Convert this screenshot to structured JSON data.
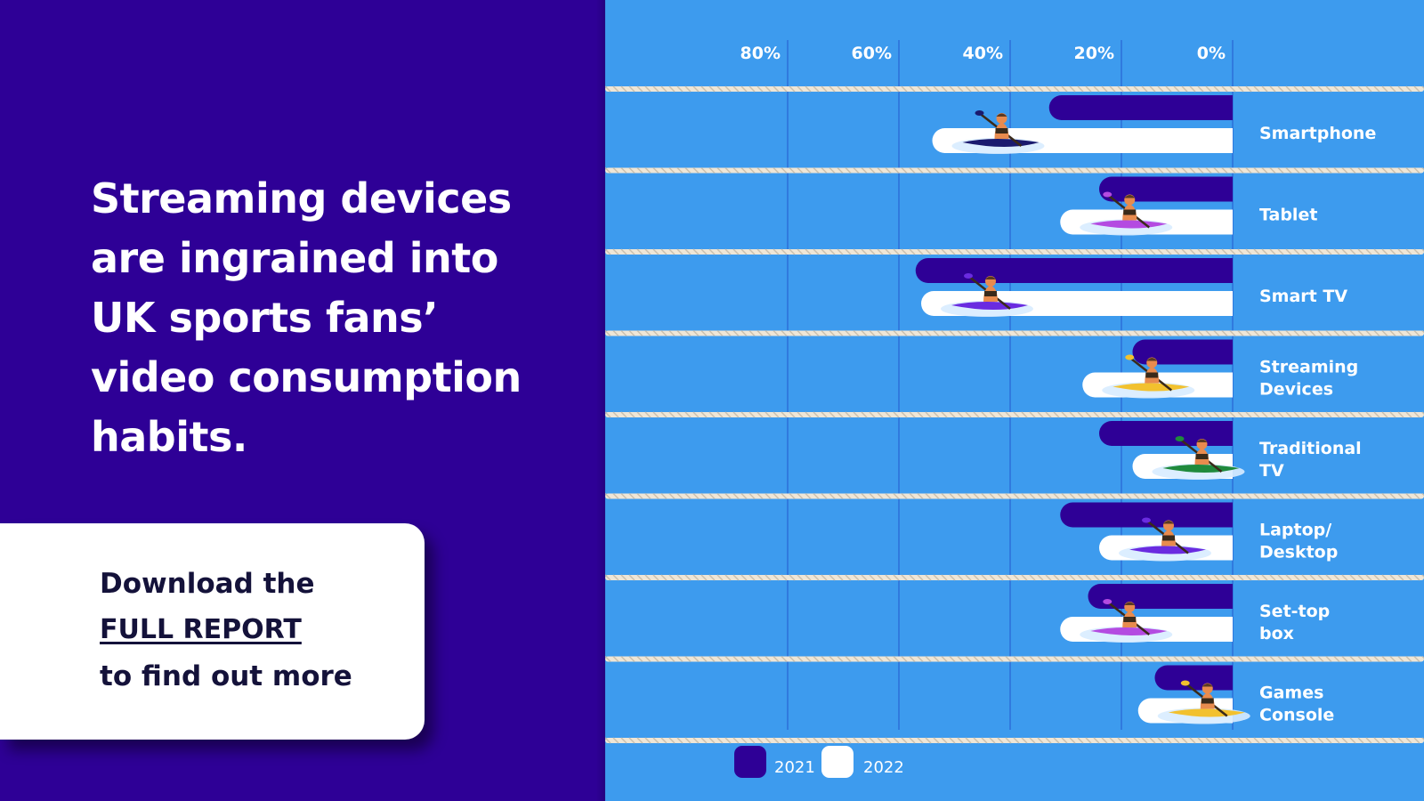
{
  "headline": "Streaming devices are ingrained into UK sports fans’ video consumption habits.",
  "cta": {
    "line1": "Download the",
    "link": "FULL REPORT",
    "line3": "to find out more"
  },
  "colors": {
    "left_bg": "#2e0096",
    "chart_bg": "#3d9bee",
    "bar_2021": "#2e0096",
    "bar_2022": "#ffffff",
    "grid": "#2c6fd8",
    "rope": "#efe6d6"
  },
  "chart_data": {
    "type": "bar",
    "orientation": "horizontal",
    "x_direction": "reversed",
    "xlim": [
      0,
      100
    ],
    "x_ticks": [
      {
        "value": 80,
        "label": "80%"
      },
      {
        "value": 60,
        "label": "60%"
      },
      {
        "value": 40,
        "label": "40%"
      },
      {
        "value": 20,
        "label": "20%"
      },
      {
        "value": 0,
        "label": "0%"
      }
    ],
    "categories": [
      [
        "Smartphone"
      ],
      [
        "Tablet"
      ],
      [
        "Smart TV"
      ],
      [
        "Streaming",
        "Devices"
      ],
      [
        "Traditional",
        "TV"
      ],
      [
        "Laptop/",
        "Desktop"
      ],
      [
        "Set-top",
        "box"
      ],
      [
        "Games",
        "Console"
      ]
    ],
    "series": [
      {
        "name": "2021",
        "values": [
          33,
          24,
          57,
          18,
          24,
          31,
          26,
          14
        ]
      },
      {
        "name": "2022",
        "values": [
          54,
          31,
          56,
          27,
          18,
          24,
          31,
          17
        ]
      }
    ],
    "kayak_colors": [
      "#1a1a6e",
      "#b44be1",
      "#6a2be0",
      "#f2c12e",
      "#1f8a3c",
      "#6a2be0",
      "#b44be1",
      "#f2c12e"
    ],
    "legend_position": "bottom"
  }
}
